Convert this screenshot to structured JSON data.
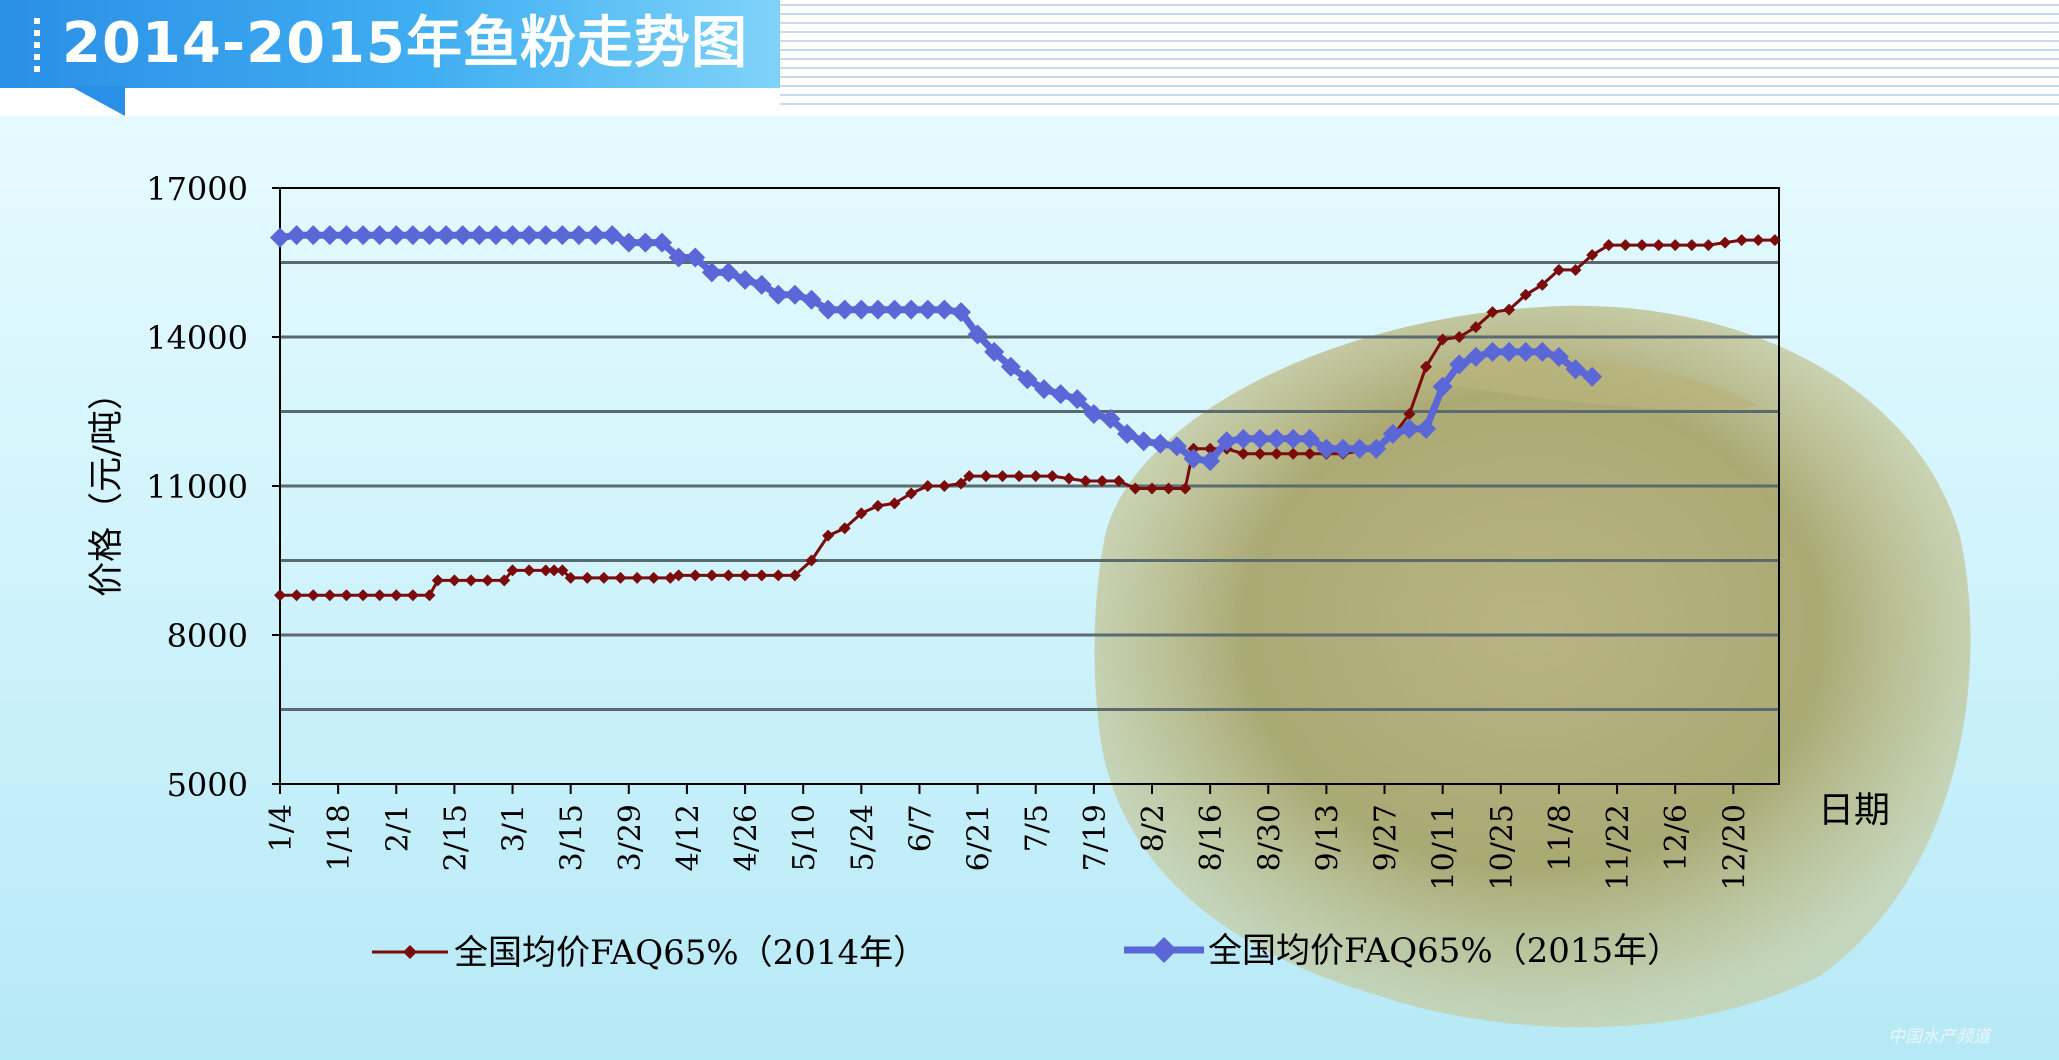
{
  "banner": {
    "title": "2014-2015年鱼粉走势图"
  },
  "watermark": "中国水产频道",
  "colors": {
    "series_2014": "#7a0c0c",
    "series_2015": "#5b67d6",
    "grid": "#5a6a6f"
  },
  "chart_data": {
    "type": "line",
    "title": "",
    "xlabel": "日期",
    "ylabel": "价格（元/吨）",
    "ylim": [
      5000,
      17000
    ],
    "yticks": [
      5000,
      8000,
      11000,
      14000,
      17000
    ],
    "gridlines": [
      6500,
      8000,
      9500,
      11000,
      12500,
      14000,
      15500
    ],
    "x_range": [
      0,
      361
    ],
    "xticks": [
      {
        "label": "1/4",
        "day": 0
      },
      {
        "label": "1/18",
        "day": 14
      },
      {
        "label": "2/1",
        "day": 28
      },
      {
        "label": "2/15",
        "day": 42
      },
      {
        "label": "3/1",
        "day": 56
      },
      {
        "label": "3/15",
        "day": 70
      },
      {
        "label": "3/29",
        "day": 84
      },
      {
        "label": "4/12",
        "day": 98
      },
      {
        "label": "4/26",
        "day": 112
      },
      {
        "label": "5/10",
        "day": 126
      },
      {
        "label": "5/24",
        "day": 140
      },
      {
        "label": "6/7",
        "day": 154
      },
      {
        "label": "6/21",
        "day": 168
      },
      {
        "label": "7/5",
        "day": 182
      },
      {
        "label": "7/19",
        "day": 196
      },
      {
        "label": "8/2",
        "day": 210
      },
      {
        "label": "8/16",
        "day": 224
      },
      {
        "label": "8/30",
        "day": 238
      },
      {
        "label": "9/13",
        "day": 252
      },
      {
        "label": "9/27",
        "day": 266
      },
      {
        "label": "10/11",
        "day": 280
      },
      {
        "label": "10/25",
        "day": 294
      },
      {
        "label": "11/8",
        "day": 308
      },
      {
        "label": "11/22",
        "day": 322
      },
      {
        "label": "12/6",
        "day": 336
      },
      {
        "label": "12/20",
        "day": 350
      }
    ],
    "legend_position": "bottom",
    "series": [
      {
        "name": "全国均价FAQ65%（2014年）",
        "color": "#7a0c0c",
        "marker": "diamond-small",
        "points": [
          [
            0,
            8800
          ],
          [
            4,
            8800
          ],
          [
            8,
            8800
          ],
          [
            12,
            8800
          ],
          [
            16,
            8800
          ],
          [
            20,
            8800
          ],
          [
            24,
            8800
          ],
          [
            28,
            8800
          ],
          [
            32,
            8800
          ],
          [
            36,
            8800
          ],
          [
            38,
            9100
          ],
          [
            42,
            9100
          ],
          [
            46,
            9100
          ],
          [
            50,
            9100
          ],
          [
            54,
            9100
          ],
          [
            56,
            9300
          ],
          [
            60,
            9300
          ],
          [
            64,
            9300
          ],
          [
            66,
            9300
          ],
          [
            68,
            9300
          ],
          [
            70,
            9150
          ],
          [
            74,
            9150
          ],
          [
            78,
            9150
          ],
          [
            82,
            9150
          ],
          [
            86,
            9150
          ],
          [
            90,
            9150
          ],
          [
            94,
            9150
          ],
          [
            96,
            9200
          ],
          [
            100,
            9200
          ],
          [
            104,
            9200
          ],
          [
            108,
            9200
          ],
          [
            112,
            9200
          ],
          [
            116,
            9200
          ],
          [
            120,
            9200
          ],
          [
            124,
            9200
          ],
          [
            128,
            9500
          ],
          [
            132,
            10000
          ],
          [
            136,
            10150
          ],
          [
            140,
            10450
          ],
          [
            144,
            10600
          ],
          [
            148,
            10650
          ],
          [
            152,
            10850
          ],
          [
            156,
            11000
          ],
          [
            160,
            11000
          ],
          [
            164,
            11050
          ],
          [
            166,
            11200
          ],
          [
            170,
            11200
          ],
          [
            174,
            11200
          ],
          [
            178,
            11200
          ],
          [
            182,
            11200
          ],
          [
            186,
            11200
          ],
          [
            190,
            11150
          ],
          [
            194,
            11100
          ],
          [
            198,
            11100
          ],
          [
            202,
            11100
          ],
          [
            206,
            10950
          ],
          [
            210,
            10950
          ],
          [
            214,
            10950
          ],
          [
            218,
            10950
          ],
          [
            220,
            11750
          ],
          [
            224,
            11750
          ],
          [
            228,
            11750
          ],
          [
            232,
            11650
          ],
          [
            236,
            11650
          ],
          [
            240,
            11650
          ],
          [
            244,
            11650
          ],
          [
            248,
            11650
          ],
          [
            252,
            11650
          ],
          [
            256,
            11650
          ],
          [
            260,
            11700
          ],
          [
            264,
            11750
          ],
          [
            268,
            12000
          ],
          [
            272,
            12450
          ],
          [
            276,
            13400
          ],
          [
            280,
            13950
          ],
          [
            284,
            14000
          ],
          [
            288,
            14200
          ],
          [
            292,
            14500
          ],
          [
            296,
            14550
          ],
          [
            300,
            14850
          ],
          [
            304,
            15050
          ],
          [
            308,
            15350
          ],
          [
            312,
            15350
          ],
          [
            316,
            15650
          ],
          [
            320,
            15850
          ],
          [
            324,
            15850
          ],
          [
            328,
            15850
          ],
          [
            332,
            15850
          ],
          [
            336,
            15850
          ],
          [
            340,
            15850
          ],
          [
            344,
            15850
          ],
          [
            348,
            15900
          ],
          [
            352,
            15950
          ],
          [
            356,
            15950
          ],
          [
            360,
            15950
          ]
        ]
      },
      {
        "name": "全国均价FAQ65%（2015年）",
        "color": "#5b67d6",
        "marker": "diamond-large",
        "points": [
          [
            0,
            16000
          ],
          [
            4,
            16050
          ],
          [
            8,
            16050
          ],
          [
            12,
            16050
          ],
          [
            16,
            16050
          ],
          [
            20,
            16050
          ],
          [
            24,
            16050
          ],
          [
            28,
            16050
          ],
          [
            32,
            16050
          ],
          [
            36,
            16050
          ],
          [
            40,
            16050
          ],
          [
            44,
            16050
          ],
          [
            48,
            16050
          ],
          [
            52,
            16050
          ],
          [
            56,
            16050
          ],
          [
            60,
            16050
          ],
          [
            64,
            16050
          ],
          [
            68,
            16050
          ],
          [
            72,
            16050
          ],
          [
            76,
            16050
          ],
          [
            80,
            16050
          ],
          [
            84,
            15900
          ],
          [
            88,
            15900
          ],
          [
            92,
            15900
          ],
          [
            96,
            15600
          ],
          [
            100,
            15600
          ],
          [
            104,
            15300
          ],
          [
            108,
            15300
          ],
          [
            112,
            15150
          ],
          [
            116,
            15050
          ],
          [
            120,
            14850
          ],
          [
            124,
            14850
          ],
          [
            128,
            14750
          ],
          [
            132,
            14550
          ],
          [
            136,
            14550
          ],
          [
            140,
            14550
          ],
          [
            144,
            14550
          ],
          [
            148,
            14550
          ],
          [
            152,
            14550
          ],
          [
            156,
            14550
          ],
          [
            160,
            14550
          ],
          [
            164,
            14500
          ],
          [
            168,
            14050
          ],
          [
            172,
            13700
          ],
          [
            176,
            13400
          ],
          [
            180,
            13150
          ],
          [
            184,
            12950
          ],
          [
            188,
            12850
          ],
          [
            192,
            12750
          ],
          [
            196,
            12450
          ],
          [
            200,
            12350
          ],
          [
            204,
            12050
          ],
          [
            208,
            11900
          ],
          [
            212,
            11850
          ],
          [
            216,
            11800
          ],
          [
            220,
            11550
          ],
          [
            224,
            11500
          ],
          [
            228,
            11900
          ],
          [
            232,
            11950
          ],
          [
            236,
            11950
          ],
          [
            240,
            11950
          ],
          [
            244,
            11950
          ],
          [
            248,
            11950
          ],
          [
            252,
            11750
          ],
          [
            256,
            11750
          ],
          [
            260,
            11750
          ],
          [
            264,
            11750
          ],
          [
            268,
            12050
          ],
          [
            272,
            12150
          ],
          [
            276,
            12150
          ],
          [
            280,
            13000
          ],
          [
            284,
            13450
          ],
          [
            288,
            13600
          ],
          [
            292,
            13700
          ],
          [
            296,
            13700
          ],
          [
            300,
            13700
          ],
          [
            304,
            13700
          ],
          [
            308,
            13600
          ],
          [
            312,
            13350
          ],
          [
            316,
            13200
          ]
        ]
      }
    ]
  }
}
